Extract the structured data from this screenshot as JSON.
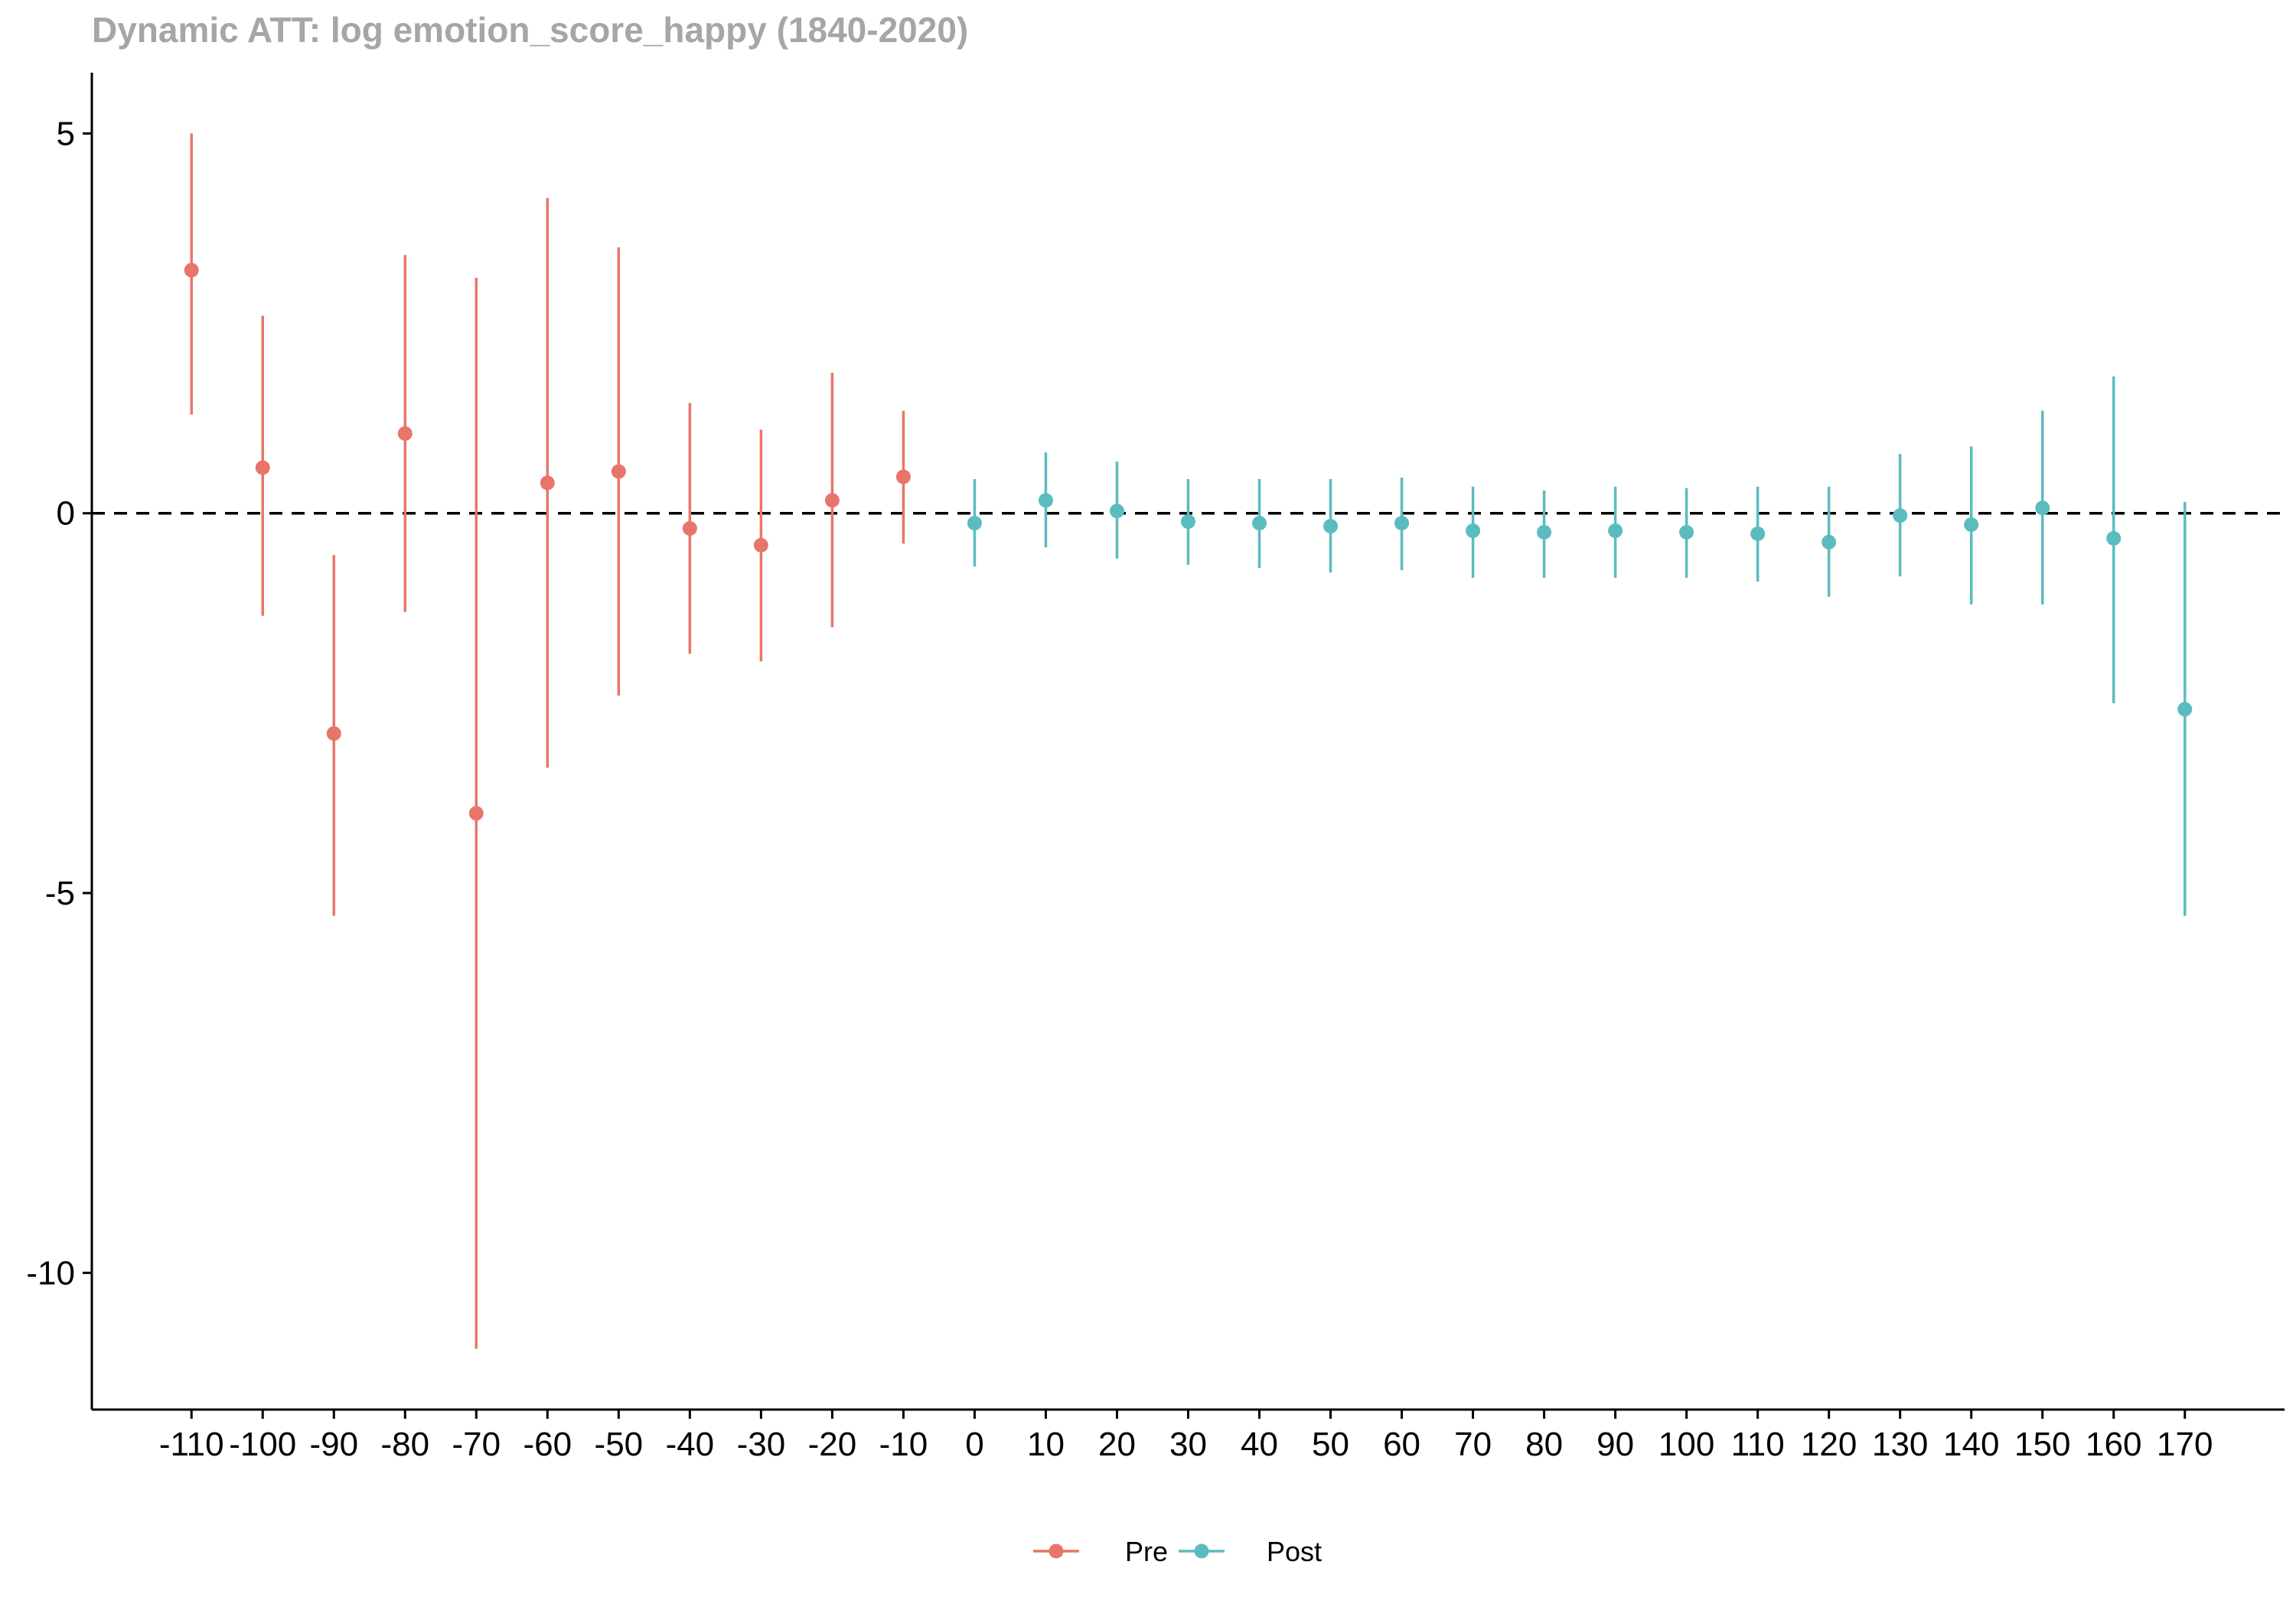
{
  "chart_data": {
    "type": "scatter",
    "title": "Dynamic ATT: log emotion_score_happy (1840-2020)",
    "xlabel": "",
    "ylabel": "",
    "x_ticks": [
      -110,
      -100,
      -90,
      -80,
      -70,
      -60,
      -50,
      -40,
      -30,
      -20,
      -10,
      0,
      10,
      20,
      30,
      40,
      50,
      60,
      70,
      80,
      90,
      100,
      110,
      120,
      130,
      140,
      150,
      160,
      170
    ],
    "y_ticks": [
      5,
      0,
      -5,
      -10
    ],
    "xlim": [
      -124,
      184
    ],
    "ylim": [
      -11.8,
      5.8
    ],
    "reference_line": {
      "y": 0,
      "style": "dashed"
    },
    "grid": false,
    "legend": {
      "position": "bottom"
    },
    "series": [
      {
        "name": "Pre",
        "color": "#e8756a",
        "points": [
          {
            "x": -110,
            "y": 3.2,
            "lo": 1.3,
            "hi": 5.0
          },
          {
            "x": -100,
            "y": 0.6,
            "lo": -1.35,
            "hi": 2.6
          },
          {
            "x": -90,
            "y": -2.9,
            "lo": -5.3,
            "hi": -0.55
          },
          {
            "x": -80,
            "y": 1.05,
            "lo": -1.3,
            "hi": 3.4
          },
          {
            "x": -70,
            "y": -3.95,
            "lo": -11.0,
            "hi": 3.1
          },
          {
            "x": -60,
            "y": 0.4,
            "lo": -3.35,
            "hi": 4.15
          },
          {
            "x": -50,
            "y": 0.55,
            "lo": -2.4,
            "hi": 3.5
          },
          {
            "x": -40,
            "y": -0.2,
            "lo": -1.85,
            "hi": 1.45
          },
          {
            "x": -30,
            "y": -0.42,
            "lo": -1.95,
            "hi": 1.1
          },
          {
            "x": -20,
            "y": 0.17,
            "lo": -1.5,
            "hi": 1.85
          },
          {
            "x": -10,
            "y": 0.48,
            "lo": -0.4,
            "hi": 1.35
          }
        ]
      },
      {
        "name": "Post",
        "color": "#5bbcbf",
        "points": [
          {
            "x": 0,
            "y": -0.13,
            "lo": -0.7,
            "hi": 0.45
          },
          {
            "x": 10,
            "y": 0.17,
            "lo": -0.45,
            "hi": 0.8
          },
          {
            "x": 20,
            "y": 0.03,
            "lo": -0.6,
            "hi": 0.68
          },
          {
            "x": 30,
            "y": -0.11,
            "lo": -0.68,
            "hi": 0.45
          },
          {
            "x": 40,
            "y": -0.13,
            "lo": -0.72,
            "hi": 0.45
          },
          {
            "x": 50,
            "y": -0.17,
            "lo": -0.78,
            "hi": 0.45
          },
          {
            "x": 60,
            "y": -0.13,
            "lo": -0.75,
            "hi": 0.47
          },
          {
            "x": 70,
            "y": -0.23,
            "lo": -0.85,
            "hi": 0.35
          },
          {
            "x": 80,
            "y": -0.25,
            "lo": -0.85,
            "hi": 0.3
          },
          {
            "x": 90,
            "y": -0.23,
            "lo": -0.85,
            "hi": 0.35
          },
          {
            "x": 100,
            "y": -0.25,
            "lo": -0.85,
            "hi": 0.33
          },
          {
            "x": 110,
            "y": -0.27,
            "lo": -0.9,
            "hi": 0.35
          },
          {
            "x": 120,
            "y": -0.38,
            "lo": -1.1,
            "hi": 0.35
          },
          {
            "x": 130,
            "y": -0.03,
            "lo": -0.83,
            "hi": 0.78
          },
          {
            "x": 140,
            "y": -0.15,
            "lo": -1.2,
            "hi": 0.88
          },
          {
            "x": 150,
            "y": 0.07,
            "lo": -1.2,
            "hi": 1.35
          },
          {
            "x": 160,
            "y": -0.33,
            "lo": -2.5,
            "hi": 1.8
          },
          {
            "x": 170,
            "y": -2.58,
            "lo": -5.3,
            "hi": 0.15
          }
        ]
      }
    ]
  }
}
